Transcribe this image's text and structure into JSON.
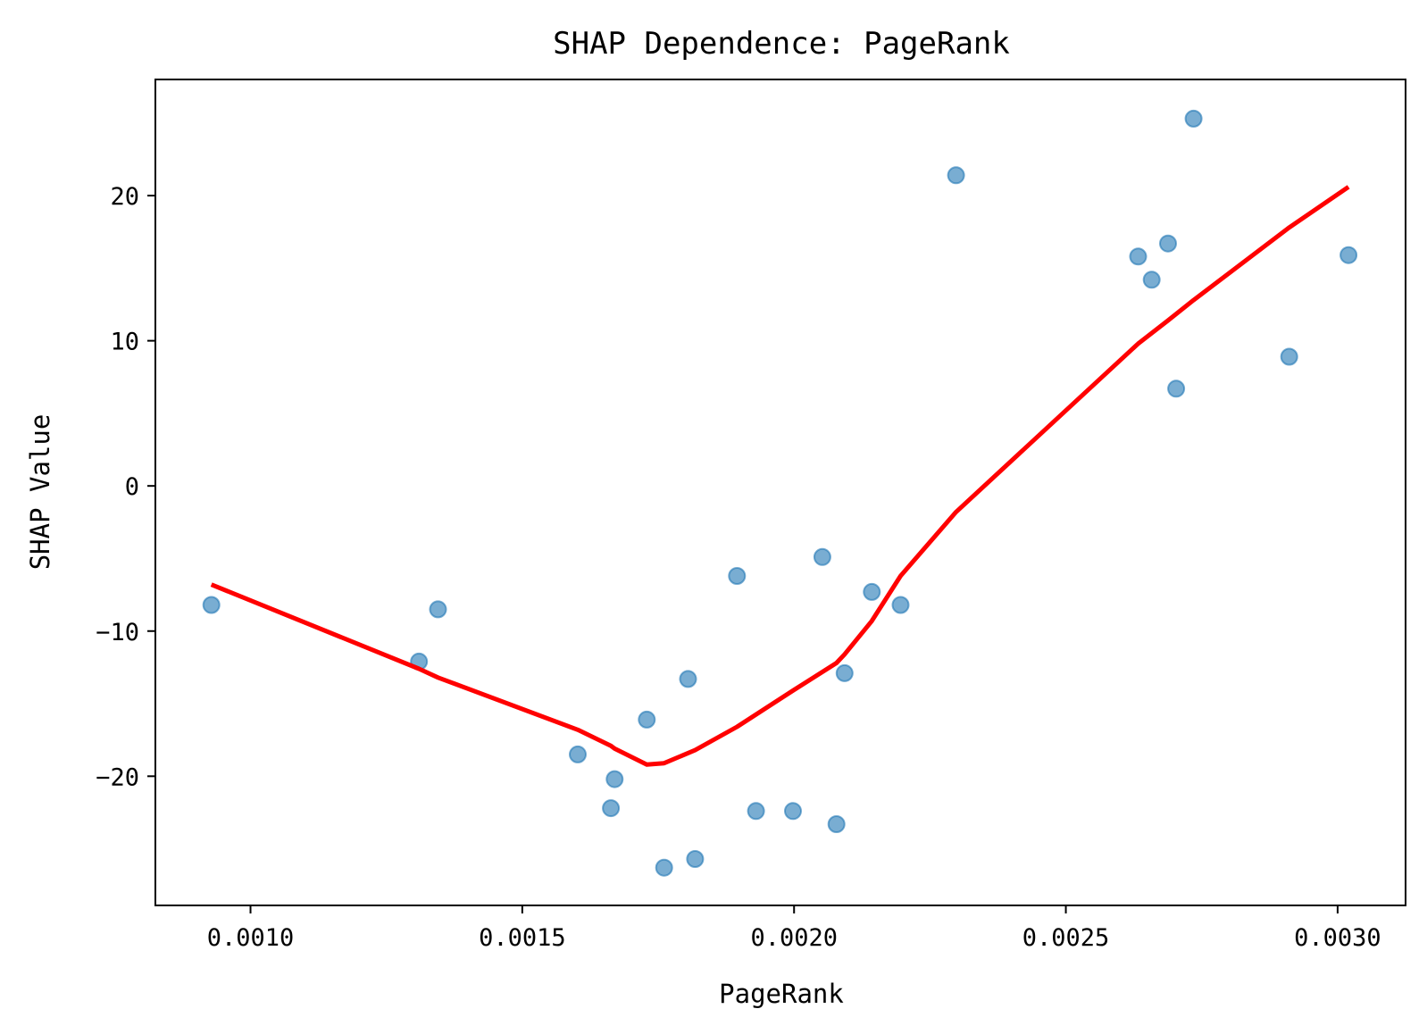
{
  "chart_data": {
    "type": "scatter",
    "title": "SHAP Dependence: PageRank",
    "xlabel": "PageRank",
    "ylabel": "SHAP Value",
    "xlim": [
      0.000825,
      0.003125
    ],
    "ylim": [
      -28.9,
      28.0
    ],
    "grid": false,
    "x_ticks": [
      {
        "value": 0.001,
        "label": "0.0010"
      },
      {
        "value": 0.0015,
        "label": "0.0015"
      },
      {
        "value": 0.002,
        "label": "0.0020"
      },
      {
        "value": 0.0025,
        "label": "0.0025"
      },
      {
        "value": 0.003,
        "label": "0.0030"
      }
    ],
    "y_ticks": [
      {
        "value": 20,
        "label": "20"
      },
      {
        "value": 10,
        "label": "10"
      },
      {
        "value": 0,
        "label": "0"
      },
      {
        "value": -10,
        "label": "−10"
      },
      {
        "value": -20,
        "label": "−20"
      }
    ],
    "colors": {
      "points": "#1f77b4",
      "trend": "#ff0000",
      "axes": "#000000"
    },
    "series": [
      {
        "kind": "scatter",
        "points": [
          {
            "x": 0.000928,
            "y": -8.2
          },
          {
            "x": 0.00131,
            "y": -12.1
          },
          {
            "x": 0.001345,
            "y": -8.5
          },
          {
            "x": 0.001602,
            "y": -18.5
          },
          {
            "x": 0.001663,
            "y": -22.2
          },
          {
            "x": 0.00167,
            "y": -20.2
          },
          {
            "x": 0.001729,
            "y": -16.1
          },
          {
            "x": 0.001761,
            "y": -26.3
          },
          {
            "x": 0.001805,
            "y": -13.3
          },
          {
            "x": 0.001818,
            "y": -25.7
          },
          {
            "x": 0.001895,
            "y": -6.2
          },
          {
            "x": 0.00193,
            "y": -22.4
          },
          {
            "x": 0.001998,
            "y": -22.4
          },
          {
            "x": 0.002052,
            "y": -4.9
          },
          {
            "x": 0.002078,
            "y": -23.3
          },
          {
            "x": 0.002093,
            "y": -12.9
          },
          {
            "x": 0.002143,
            "y": -7.3
          },
          {
            "x": 0.002196,
            "y": -8.2
          },
          {
            "x": 0.002298,
            "y": 21.4
          },
          {
            "x": 0.002633,
            "y": 15.8
          },
          {
            "x": 0.002658,
            "y": 14.2
          },
          {
            "x": 0.002688,
            "y": 16.7
          },
          {
            "x": 0.002703,
            "y": 6.7
          },
          {
            "x": 0.002735,
            "y": 25.3
          },
          {
            "x": 0.002911,
            "y": 8.9
          },
          {
            "x": 0.00302,
            "y": 15.9
          }
        ]
      },
      {
        "kind": "line",
        "points": [
          {
            "x": 0.000928,
            "y": -6.8
          },
          {
            "x": 0.00131,
            "y": -12.6
          },
          {
            "x": 0.001345,
            "y": -13.2
          },
          {
            "x": 0.001602,
            "y": -16.8
          },
          {
            "x": 0.001663,
            "y": -17.9
          },
          {
            "x": 0.00167,
            "y": -18.1
          },
          {
            "x": 0.001729,
            "y": -19.2
          },
          {
            "x": 0.001761,
            "y": -19.1
          },
          {
            "x": 0.001818,
            "y": -18.2
          },
          {
            "x": 0.001895,
            "y": -16.6
          },
          {
            "x": 0.001998,
            "y": -14.1
          },
          {
            "x": 0.002078,
            "y": -12.2
          },
          {
            "x": 0.002093,
            "y": -11.6
          },
          {
            "x": 0.002143,
            "y": -9.3
          },
          {
            "x": 0.002196,
            "y": -6.2
          },
          {
            "x": 0.002298,
            "y": -1.8
          },
          {
            "x": 0.002633,
            "y": 9.8
          },
          {
            "x": 0.002688,
            "y": 11.4
          },
          {
            "x": 0.002735,
            "y": 12.8
          },
          {
            "x": 0.002911,
            "y": 17.8
          },
          {
            "x": 0.00302,
            "y": 20.6
          }
        ]
      }
    ]
  }
}
